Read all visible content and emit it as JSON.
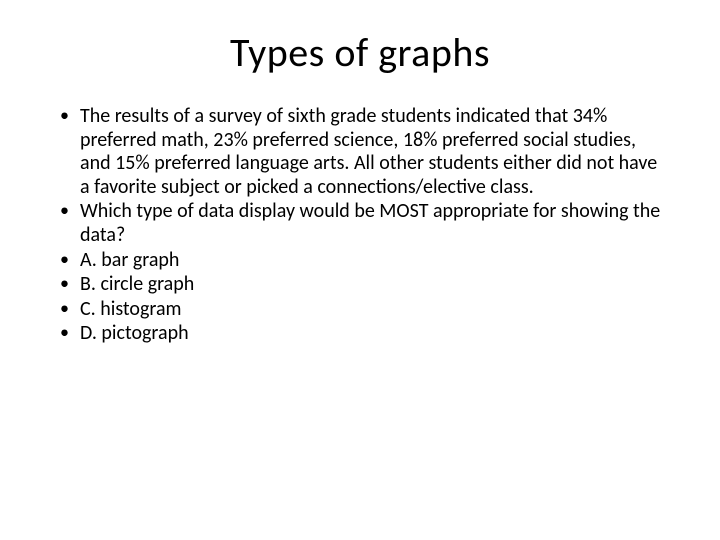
{
  "slide": {
    "title": "Types of graphs",
    "bullets": [
      "The results of a survey of sixth grade students indicated that 34% preferred math, 23% preferred science, 18% preferred social studies, and 15% preferred language arts. All other students either did not have a favorite subject or picked a connections/elective class.",
      "Which type of data display would be MOST appropriate for showing the data?",
      "A. bar graph",
      "B. circle graph",
      "C. histogram",
      "D. pictograph"
    ]
  },
  "style": {
    "background_color": "#ffffff",
    "text_color": "#000000",
    "title_fontsize": 40,
    "body_fontsize": 20,
    "font_family": "Calibri"
  }
}
